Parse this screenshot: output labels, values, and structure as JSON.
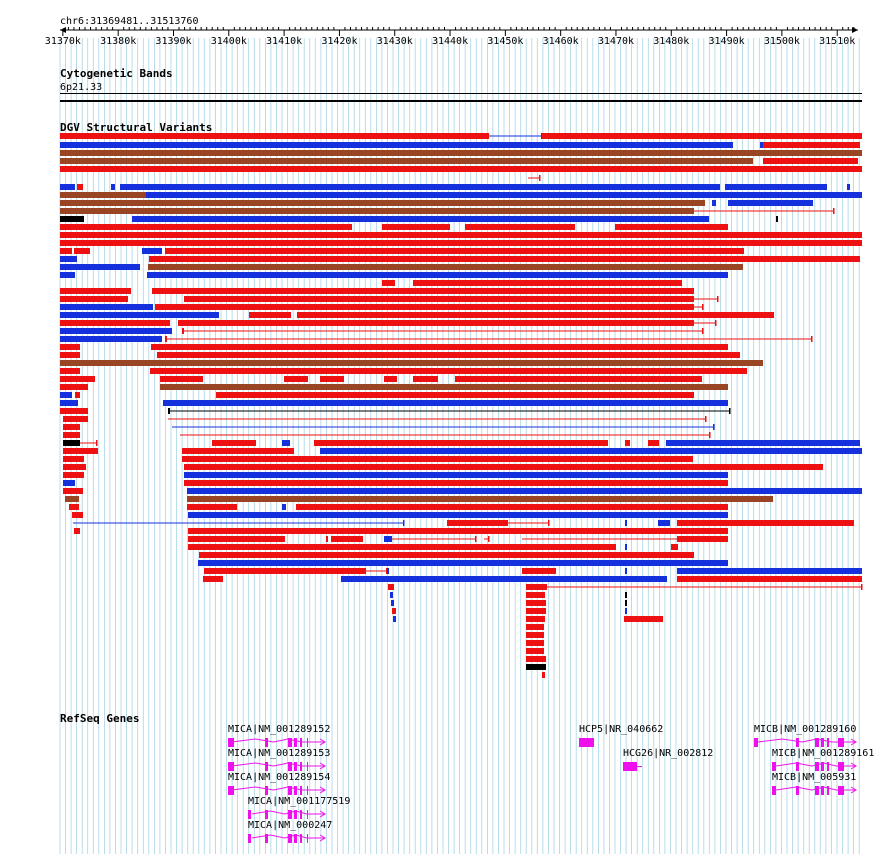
{
  "position": "chr6:31369481..31513760",
  "ruler": {
    "start": 31369481,
    "end": 31513760,
    "tick_labels": [
      "31370k",
      "31380k",
      "31390k",
      "31400k",
      "31410k",
      "31420k",
      "31430k",
      "31440k",
      "31450k",
      "31460k",
      "31470k",
      "31480k",
      "31490k",
      "31500k",
      "31510k"
    ]
  },
  "tracks": {
    "cytoband": {
      "label": "Cytogenetic Bands",
      "band": "6p21.33"
    },
    "dgv": {
      "label": "DGV Structural Variants"
    },
    "refseq": {
      "label": "RefSeq Genes"
    }
  },
  "colors": {
    "gain": "#ee1111",
    "loss": "#1530dd",
    "gain_loss": "#994422",
    "complex": "#000000",
    "gene": "#ee11ee",
    "grid": "#aad4e6"
  },
  "genes": [
    {
      "label": "MICA|NM_001289152",
      "strand": "+",
      "structure": "coding"
    },
    {
      "label": "MICA|NM_001289153",
      "strand": "+",
      "structure": "coding"
    },
    {
      "label": "MICA|NM_001289154",
      "strand": "+",
      "structure": "coding"
    },
    {
      "label": "MICA|NM_001177519",
      "strand": "+",
      "structure": "coding"
    },
    {
      "label": "MICA|NM_000247",
      "strand": "+",
      "structure": "coding"
    },
    {
      "label": "HCP5|NR_040662",
      "strand": "+",
      "structure": "single-exon"
    },
    {
      "label": "HCG26|NR_002812",
      "strand": "+",
      "structure": "single-exon"
    },
    {
      "label": "MICB|NM_001289160",
      "strand": "+",
      "structure": "coding"
    },
    {
      "label": "MICB|NM_001289161",
      "strand": "+",
      "structure": "coding"
    },
    {
      "label": "MICB|NM_005931",
      "strand": "+",
      "structure": "coding"
    }
  ]
}
